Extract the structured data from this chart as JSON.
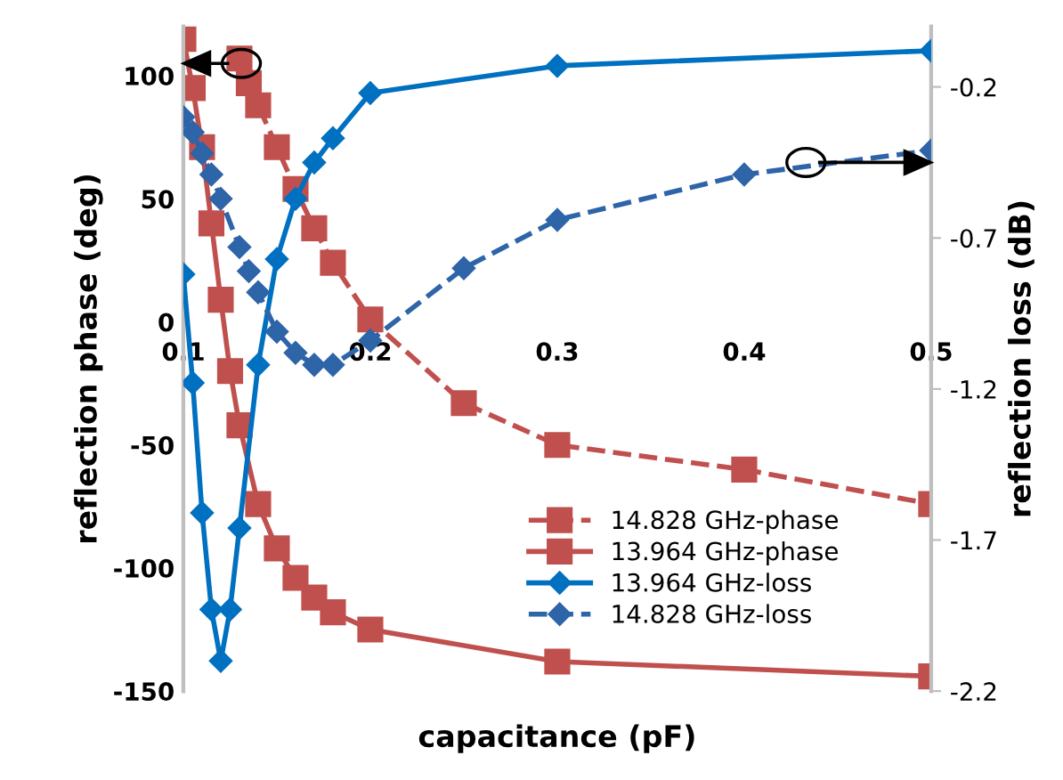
{
  "chart_data": {
    "type": "line",
    "xlabel": "capacitance (pF)",
    "ylabel": "reflection phase (deg)",
    "y2label": "reflection loss (dB)",
    "xlim": [
      0.1,
      0.5
    ],
    "xticks": [
      0.1,
      0.2,
      0.3,
      0.4,
      0.5
    ],
    "ylim": [
      -150,
      120
    ],
    "yticks": [
      -150,
      -100,
      -50,
      0,
      50,
      100
    ],
    "y2lim": [
      -2.2,
      0
    ],
    "y2ticks": [
      -2.2,
      -1.7,
      -1.2,
      -0.7,
      -0.2
    ],
    "grid": false,
    "legend": "bottom right",
    "series": [
      {
        "name": "14.828 GHz-phase",
        "color": "#c0504d",
        "marker": "square",
        "line_style": "dashed",
        "x": [
          0.13,
          0.135,
          0.14,
          0.15,
          0.16,
          0.17,
          0.18,
          0.2,
          0.25,
          0.3,
          0.4,
          0.5
        ],
        "values": [
          107,
          97,
          88,
          71,
          54,
          38,
          24,
          1,
          -33,
          -50,
          -60,
          -74
        ]
      },
      {
        "name": "13.964 GHz-phase",
        "color": "#c0504d",
        "marker": "square",
        "line_style": "solid",
        "x": [
          0.1,
          0.105,
          0.11,
          0.115,
          0.12,
          0.125,
          0.13,
          0.14,
          0.15,
          0.16,
          0.17,
          0.18,
          0.2,
          0.3,
          0.5
        ],
        "values": [
          115,
          95,
          71,
          40,
          9,
          -20,
          -42,
          -74,
          -92,
          -104,
          -112,
          -118,
          -125,
          -138,
          -144
        ]
      },
      {
        "name": "13.964 GHz-loss",
        "color": "#0070c0",
        "marker": "diamond",
        "line_style": "solid",
        "axis": "y2",
        "x": [
          0.1,
          0.105,
          0.11,
          0.115,
          0.12,
          0.125,
          0.13,
          0.14,
          0.15,
          0.16,
          0.17,
          0.18,
          0.2,
          0.3,
          0.5
        ],
        "values": [
          -0.82,
          -1.18,
          -1.61,
          -1.93,
          -2.1,
          -1.93,
          -1.66,
          -1.12,
          -0.77,
          -0.57,
          -0.45,
          -0.37,
          -0.22,
          -0.13,
          -0.08
        ]
      },
      {
        "name": "14.828 GHz-loss",
        "color": "#2e64a8",
        "marker": "diamond",
        "line_style": "dashed",
        "axis": "y2",
        "x": [
          0.1,
          0.105,
          0.11,
          0.115,
          0.12,
          0.13,
          0.135,
          0.14,
          0.15,
          0.16,
          0.17,
          0.18,
          0.2,
          0.25,
          0.3,
          0.4,
          0.5
        ],
        "values": [
          -0.3,
          -0.35,
          -0.42,
          -0.49,
          -0.57,
          -0.73,
          -0.81,
          -0.88,
          -1.01,
          -1.08,
          -1.12,
          -1.12,
          -1.04,
          -0.8,
          -0.64,
          -0.49,
          -0.41
        ]
      }
    ]
  }
}
